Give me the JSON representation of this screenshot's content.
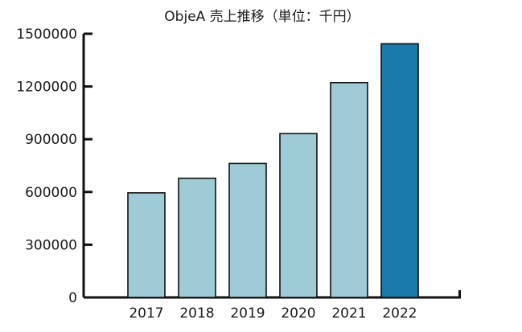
{
  "chart_data": {
    "type": "bar",
    "title": "ObjeA 売上推移（単位：千円）",
    "xlabel": "",
    "ylabel": "",
    "categories": [
      "2017",
      "2018",
      "2019",
      "2020",
      "2021",
      "2022"
    ],
    "values": [
      595000,
      678000,
      762000,
      932000,
      1222000,
      1443000
    ],
    "ylim": [
      0,
      1500000
    ],
    "yticks": [
      0,
      300000,
      600000,
      900000,
      1200000,
      1500000
    ],
    "ytick_labels": [
      "0",
      "300000",
      "600000",
      "900000",
      "1200000",
      "1500000"
    ],
    "grid": false,
    "legend": "none",
    "colors": {
      "bar": "#9ecbd6",
      "highlight_bar": "#1a7aab",
      "bar_outline": "#111111",
      "axis": "#111111"
    },
    "highlight_category": "2022"
  }
}
